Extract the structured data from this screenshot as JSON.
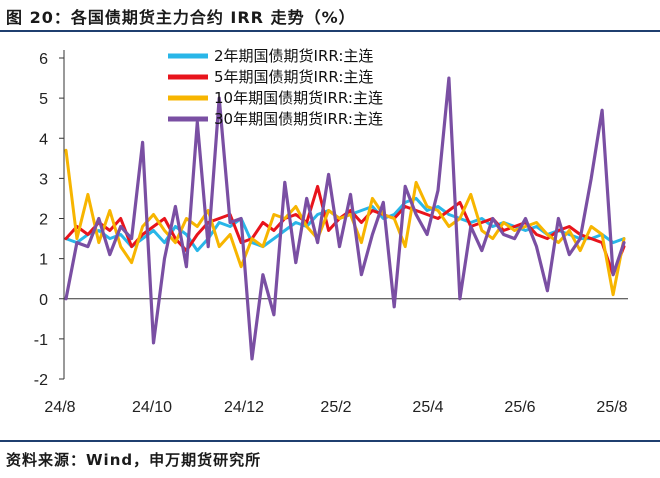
{
  "header": {
    "title": "图 20：各国债期货主力合约 IRR 走势（%）"
  },
  "footer": {
    "source": "资料来源：Wind，申万期货研究所"
  },
  "chart_data": {
    "type": "line",
    "title": "",
    "xlabel": "",
    "ylabel": "",
    "ylim": [
      -2,
      6
    ],
    "yticks": [
      6,
      5,
      4,
      3,
      2,
      1,
      0,
      -1,
      -2
    ],
    "xticks": [
      "24/8",
      "24/10",
      "24/12",
      "25/2",
      "25/4",
      "25/6",
      "25/8"
    ],
    "grid": false,
    "legend": "top-center",
    "x": [
      "24/8",
      "24/8",
      "24/8",
      "24/8",
      "24/9",
      "24/9",
      "24/9",
      "24/9",
      "24/10",
      "24/10",
      "24/10",
      "24/10",
      "24/11",
      "24/11",
      "24/11",
      "24/11",
      "24/12",
      "24/12",
      "24/12",
      "24/12",
      "25/1",
      "25/1",
      "25/1",
      "25/1",
      "25/2",
      "25/2",
      "25/2",
      "25/2",
      "25/3",
      "25/3",
      "25/3",
      "25/3",
      "25/4",
      "25/4",
      "25/4",
      "25/4",
      "25/5",
      "25/5",
      "25/5",
      "25/5",
      "25/6",
      "25/6",
      "25/6",
      "25/6",
      "25/7",
      "25/7",
      "25/7",
      "25/7",
      "25/8",
      "25/8",
      "25/8",
      "25/8"
    ],
    "series": [
      {
        "name": "2年期国债期货IRR:主连",
        "color": "#29b6e8",
        "values": [
          1.5,
          1.4,
          1.6,
          1.7,
          1.5,
          1.6,
          1.3,
          1.5,
          1.7,
          1.4,
          1.8,
          1.6,
          1.2,
          1.5,
          1.9,
          1.8,
          2.0,
          1.4,
          1.3,
          1.5,
          1.7,
          1.9,
          1.8,
          2.1,
          2.2,
          2.0,
          2.1,
          2.2,
          2.3,
          2.0,
          2.1,
          2.4,
          2.5,
          2.2,
          2.3,
          2.1,
          2.0,
          1.9,
          2.0,
          1.8,
          1.9,
          1.8,
          1.7,
          1.8,
          1.6,
          1.7,
          1.6,
          1.5,
          1.5,
          1.6,
          1.4,
          1.5
        ]
      },
      {
        "name": "5年期国债期货IRR:主连",
        "color": "#e8141c",
        "values": [
          1.5,
          1.8,
          1.6,
          1.9,
          1.7,
          2.0,
          1.3,
          1.6,
          1.8,
          2.0,
          1.5,
          1.2,
          1.6,
          1.9,
          2.0,
          2.1,
          1.4,
          1.5,
          1.9,
          1.7,
          2.0,
          2.1,
          1.9,
          2.8,
          1.7,
          2.0,
          2.2,
          1.9,
          2.2,
          2.1,
          2.0,
          2.3,
          2.2,
          2.1,
          2.0,
          2.2,
          2.4,
          1.8,
          1.9,
          2.0,
          1.7,
          1.8,
          1.9,
          1.6,
          1.5,
          1.7,
          1.8,
          1.6,
          1.5,
          1.4,
          0.6,
          1.3
        ]
      },
      {
        "name": "10年期国债期货IRR:主连",
        "color": "#f7b500",
        "values": [
          3.7,
          1.5,
          2.6,
          1.4,
          2.2,
          1.3,
          0.9,
          1.8,
          2.1,
          1.7,
          1.4,
          2.0,
          1.8,
          2.2,
          1.3,
          1.6,
          0.8,
          1.5,
          1.3,
          2.1,
          2.0,
          2.3,
          1.8,
          1.5,
          2.2,
          2.0,
          2.1,
          1.4,
          2.5,
          2.1,
          2.0,
          1.3,
          2.9,
          2.3,
          2.2,
          1.8,
          2.0,
          2.6,
          1.7,
          1.5,
          1.9,
          1.7,
          1.8,
          1.9,
          1.6,
          1.4,
          1.7,
          1.2,
          1.8,
          1.6,
          0.1,
          1.5
        ]
      },
      {
        "name": "30年期国债期货IRR:主连",
        "color": "#7a4fa3",
        "values": [
          0.0,
          1.4,
          1.3,
          2.0,
          1.1,
          1.8,
          1.5,
          3.9,
          -1.1,
          1.0,
          2.3,
          0.8,
          4.4,
          1.3,
          5.0,
          1.9,
          2.0,
          -1.5,
          0.6,
          -0.4,
          2.9,
          0.9,
          2.5,
          1.4,
          3.1,
          1.3,
          2.6,
          0.6,
          1.6,
          2.4,
          -0.2,
          2.8,
          2.1,
          1.6,
          2.7,
          5.5,
          0.0,
          1.8,
          1.2,
          2.0,
          1.6,
          1.5,
          2.0,
          1.3,
          0.2,
          2.0,
          1.1,
          1.5,
          3.0,
          4.7,
          0.6,
          1.4
        ]
      }
    ]
  }
}
